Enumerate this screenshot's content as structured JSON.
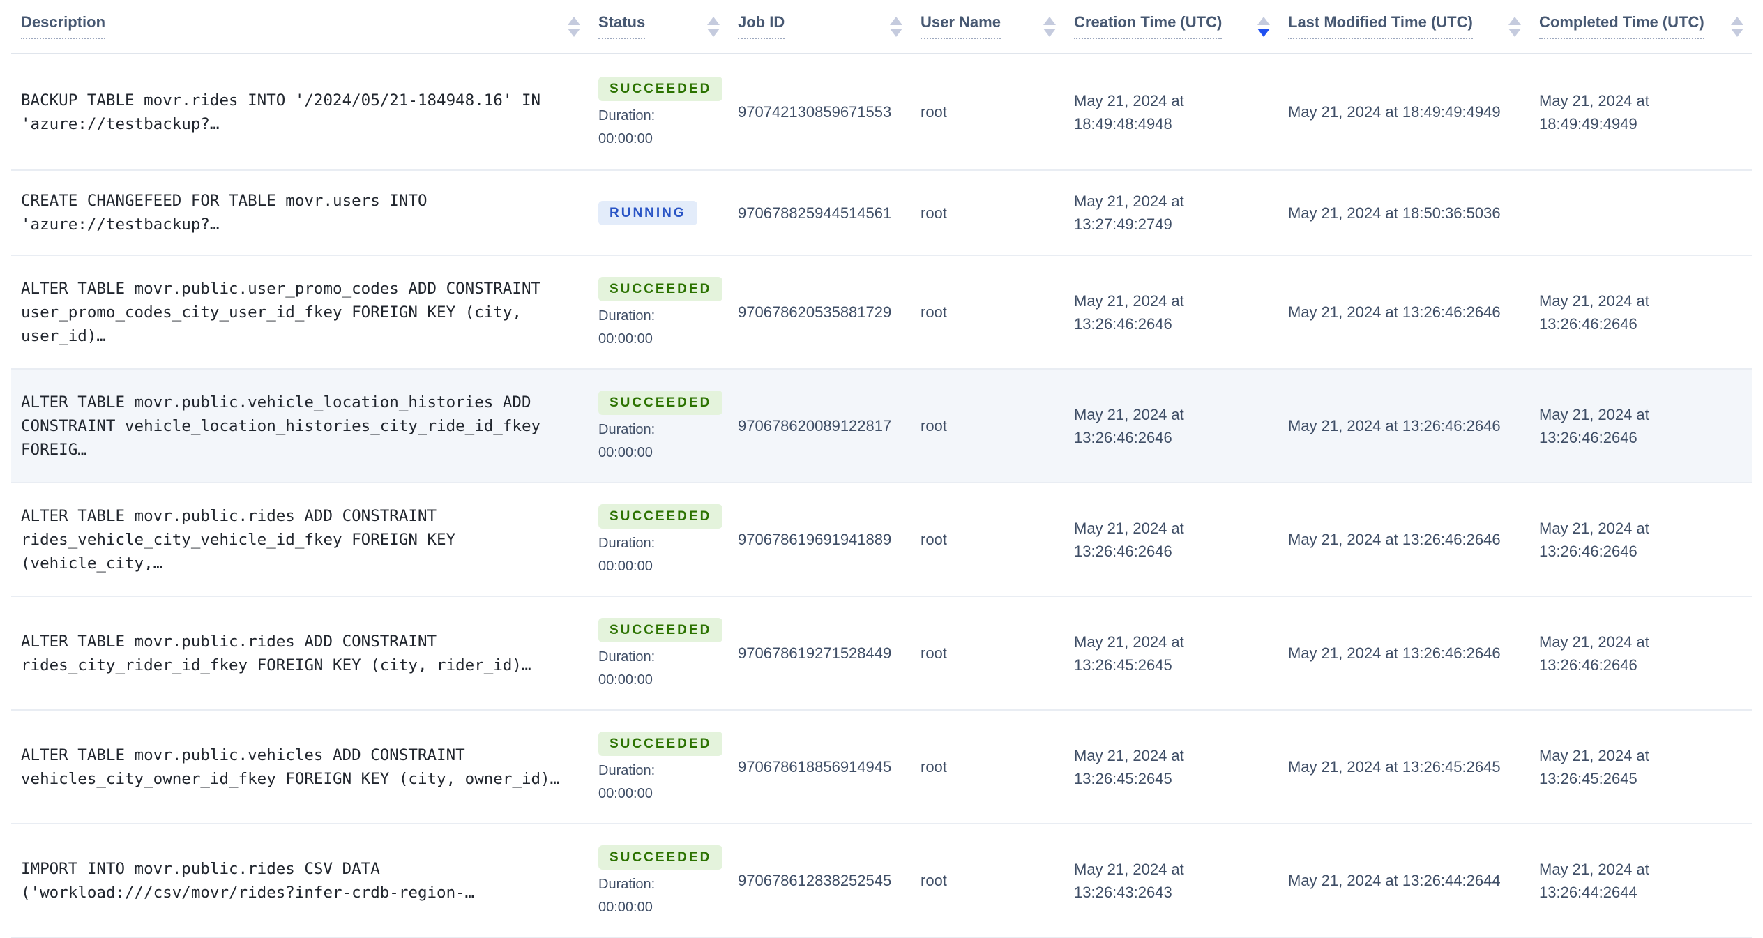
{
  "table": {
    "columns": [
      {
        "label": "Description",
        "sort": "none"
      },
      {
        "label": "Status",
        "sort": "none"
      },
      {
        "label": "Job ID",
        "sort": "none"
      },
      {
        "label": "User Name",
        "sort": "none"
      },
      {
        "label": "Creation Time (UTC)",
        "sort": "desc"
      },
      {
        "label": "Last Modified Time (UTC)",
        "sort": "none"
      },
      {
        "label": "Completed Time (UTC)",
        "sort": "none"
      }
    ],
    "rows": [
      {
        "description": "BACKUP TABLE movr.rides INTO '/2024/05/21-184948.16' IN\n'azure://testbackup?…",
        "status": "SUCCEEDED",
        "duration_label": "Duration:",
        "duration": "00:00:00",
        "job_id": "970742130859671553",
        "user_name": "root",
        "creation_time": "May 21, 2024 at 18:49:48:4948",
        "last_modified_time": "May 21, 2024 at 18:49:49:4949",
        "completed_time": "May 21, 2024 at 18:49:49:4949",
        "highlighted": false
      },
      {
        "description": "CREATE CHANGEFEED FOR TABLE movr.users INTO\n'azure://testbackup?…",
        "status": "RUNNING",
        "duration_label": null,
        "duration": null,
        "job_id": "970678825944514561",
        "user_name": "root",
        "creation_time": "May 21, 2024 at 13:27:49:2749",
        "last_modified_time": "May 21, 2024 at 18:50:36:5036",
        "completed_time": "",
        "highlighted": false
      },
      {
        "description": "ALTER TABLE movr.public.user_promo_codes ADD CONSTRAINT\nuser_promo_codes_city_user_id_fkey FOREIGN KEY (city, user_id)…",
        "status": "SUCCEEDED",
        "duration_label": "Duration:",
        "duration": "00:00:00",
        "job_id": "970678620535881729",
        "user_name": "root",
        "creation_time": "May 21, 2024 at 13:26:46:2646",
        "last_modified_time": "May 21, 2024 at 13:26:46:2646",
        "completed_time": "May 21, 2024 at 13:26:46:2646",
        "highlighted": false
      },
      {
        "description": "ALTER TABLE movr.public.vehicle_location_histories ADD\nCONSTRAINT vehicle_location_histories_city_ride_id_fkey FOREIG…",
        "status": "SUCCEEDED",
        "duration_label": "Duration:",
        "duration": "00:00:00",
        "job_id": "970678620089122817",
        "user_name": "root",
        "creation_time": "May 21, 2024 at 13:26:46:2646",
        "last_modified_time": "May 21, 2024 at 13:26:46:2646",
        "completed_time": "May 21, 2024 at 13:26:46:2646",
        "highlighted": true
      },
      {
        "description": "ALTER TABLE movr.public.rides ADD CONSTRAINT\nrides_vehicle_city_vehicle_id_fkey FOREIGN KEY (vehicle_city,…",
        "status": "SUCCEEDED",
        "duration_label": "Duration:",
        "duration": "00:00:00",
        "job_id": "970678619691941889",
        "user_name": "root",
        "creation_time": "May 21, 2024 at 13:26:46:2646",
        "last_modified_time": "May 21, 2024 at 13:26:46:2646",
        "completed_time": "May 21, 2024 at 13:26:46:2646",
        "highlighted": false
      },
      {
        "description": "ALTER TABLE movr.public.rides ADD CONSTRAINT\nrides_city_rider_id_fkey FOREIGN KEY (city, rider_id)…",
        "status": "SUCCEEDED",
        "duration_label": "Duration:",
        "duration": "00:00:00",
        "job_id": "970678619271528449",
        "user_name": "root",
        "creation_time": "May 21, 2024 at 13:26:45:2645",
        "last_modified_time": "May 21, 2024 at 13:26:46:2646",
        "completed_time": "May 21, 2024 at 13:26:46:2646",
        "highlighted": false
      },
      {
        "description": "ALTER TABLE movr.public.vehicles ADD CONSTRAINT\nvehicles_city_owner_id_fkey FOREIGN KEY (city, owner_id)…",
        "status": "SUCCEEDED",
        "duration_label": "Duration:",
        "duration": "00:00:00",
        "job_id": "970678618856914945",
        "user_name": "root",
        "creation_time": "May 21, 2024 at 13:26:45:2645",
        "last_modified_time": "May 21, 2024 at 13:26:45:2645",
        "completed_time": "May 21, 2024 at 13:26:45:2645",
        "highlighted": false
      },
      {
        "description": "IMPORT INTO movr.public.rides CSV DATA\n('workload:///csv/movr/rides?infer-crdb-region-…",
        "status": "SUCCEEDED",
        "duration_label": "Duration:",
        "duration": "00:00:00",
        "job_id": "970678612838252545",
        "user_name": "root",
        "creation_time": "May 21, 2024 at 13:26:43:2643",
        "last_modified_time": "May 21, 2024 at 13:26:44:2644",
        "completed_time": "May 21, 2024 at 13:26:44:2644",
        "highlighted": false
      }
    ],
    "icons": {
      "sort": "sort-arrows-icon"
    },
    "colors": {
      "sort_active_blue": "#2050F0",
      "sort_inactive": "#C5CBDE",
      "succeeded_bg": "#E4F3DC",
      "succeeded_text": "#2B7200",
      "running_bg": "#E3ECFA",
      "running_text": "#2954C5",
      "row_highlight": "#F3F6FA",
      "separator": "#E9EDF3",
      "header_text": "#475872",
      "body_text": "#3F4E66",
      "description_text": "#21262E"
    }
  }
}
